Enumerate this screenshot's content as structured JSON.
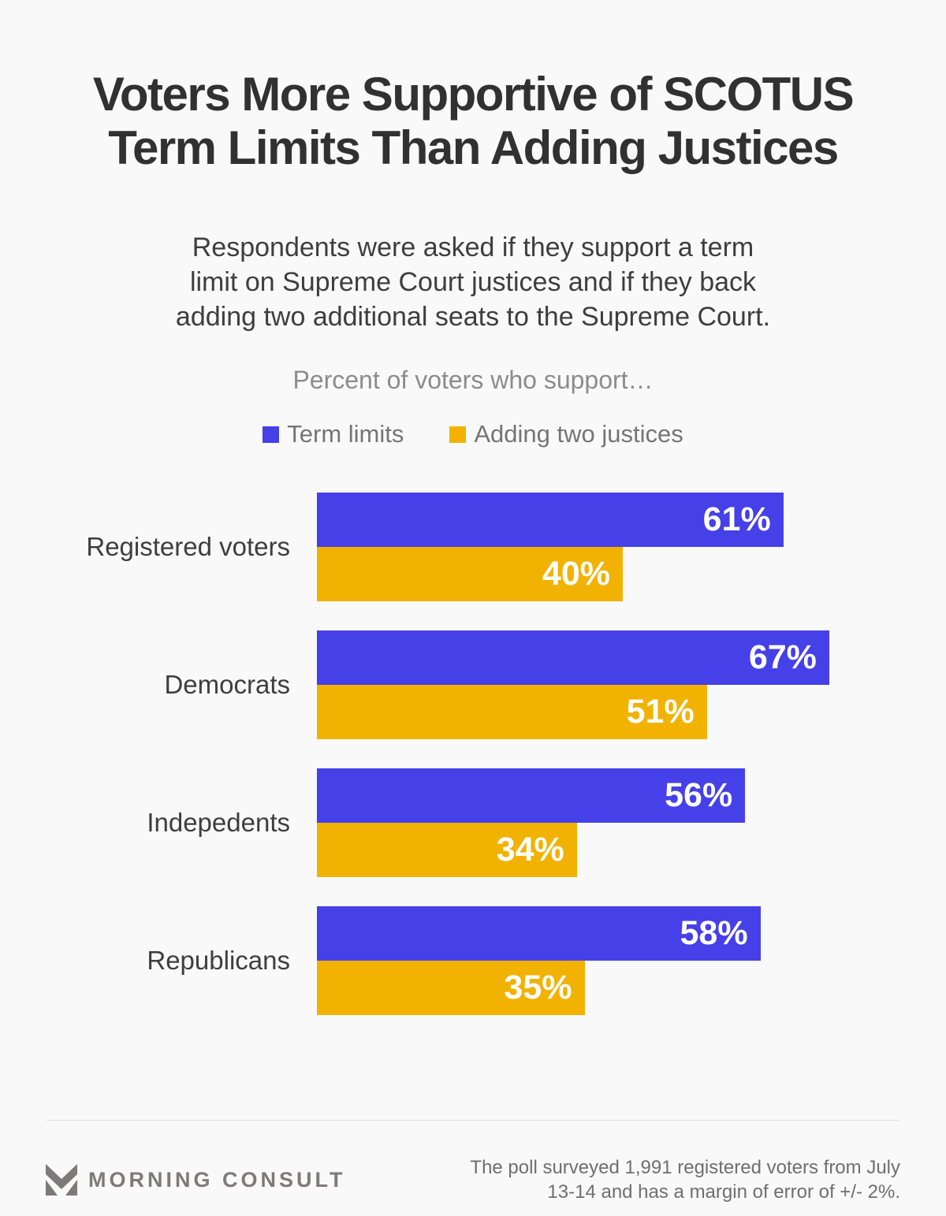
{
  "title": {
    "lines": [
      "Voters More Supportive of SCOTUS",
      "Term Limits Than Adding Justices"
    ]
  },
  "subtitle": {
    "lines": [
      "Respondents were asked if they support a term",
      "limit on Supreme Court justices and if they back",
      "adding two additional seats to the Supreme Court."
    ]
  },
  "chart_caption": "Percent of voters who support…",
  "chart_data": {
    "type": "bar",
    "orientation": "horizontal",
    "title": "Percent of voters who support…",
    "categories": [
      "Registered voters",
      "Democrats",
      "Indepedents",
      "Republicans"
    ],
    "series": [
      {
        "name": "Term limits",
        "color": "#4540e8",
        "values": [
          61,
          67,
          56,
          58
        ]
      },
      {
        "name": "Adding two justices",
        "color": "#f2b202",
        "values": [
          40,
          51,
          34,
          35
        ]
      }
    ],
    "value_suffix": "%",
    "xlim": [
      0,
      100
    ],
    "legend_position": "top",
    "grid": false,
    "value_labels": "inside-end"
  },
  "colors": {
    "background": "#f9f9f9",
    "term_limits_blue": "#4540e8",
    "adding_justices_gold": "#f2b202"
  },
  "footer": {
    "brand": "MORNING CONSULT",
    "note_lines": [
      "The poll surveyed 1,991 registered voters from July",
      "13-14 and has a margin of error of +/- 2%."
    ]
  }
}
